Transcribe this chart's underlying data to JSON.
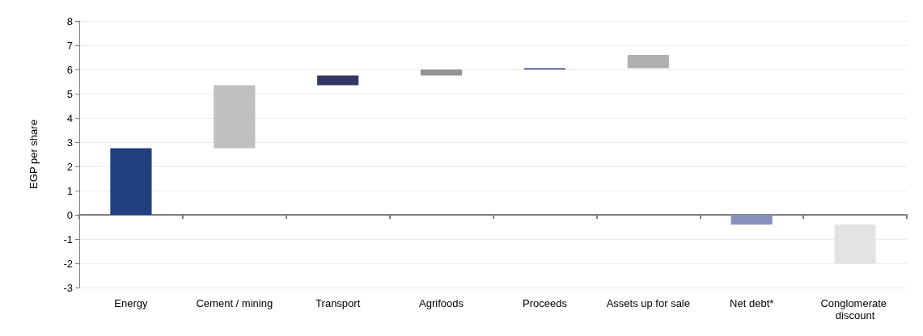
{
  "chart_data": {
    "type": "bar",
    "ylabel": "EGP per share",
    "categories": [
      "Energy",
      "Cement / mining",
      "Transport",
      "Agrifoods",
      "Proceeds",
      "Assets up for sale",
      "Net debt*",
      "Conglomerate discount"
    ],
    "values": [
      2.75,
      2.6,
      0.4,
      0.25,
      0.05,
      0.55,
      -0.4,
      -1.6
    ],
    "base": [
      0,
      2.75,
      5.35,
      5.75,
      6.0,
      6.05,
      0,
      -0.4
    ],
    "colors": [
      "#1f3f7f",
      "#c0c0c0",
      "#353567",
      "#949494",
      "#2e3f8f",
      "#b0b0b0",
      "#8791bd",
      "#e3e3e3"
    ],
    "ylim": [
      -3,
      8
    ],
    "yticks": [
      -3,
      -2,
      -1,
      0,
      1,
      2,
      3,
      4,
      5,
      6,
      7,
      8
    ],
    "grid": "y"
  }
}
